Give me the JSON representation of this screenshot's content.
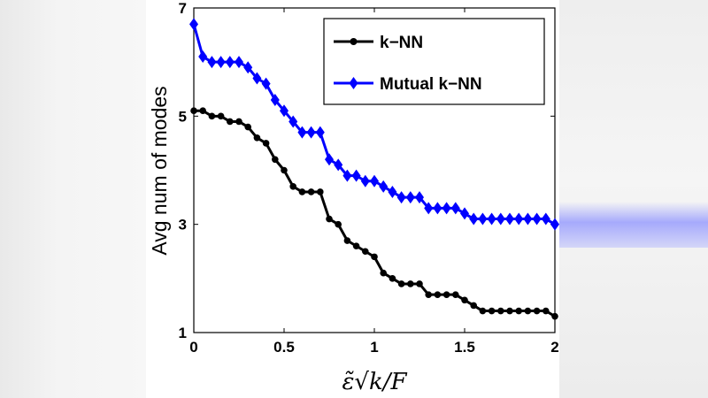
{
  "chart_data": {
    "type": "line",
    "xlabel": "ε̃√k/F",
    "ylabel": "Avg num of modes",
    "xlim": [
      0,
      2
    ],
    "ylim": [
      1,
      7
    ],
    "xticks": [
      0,
      0.5,
      1,
      1.5,
      2
    ],
    "xtick_labels": [
      "0",
      "0.5",
      "1",
      "1.5",
      "2"
    ],
    "yticks": [
      1,
      3,
      5,
      7
    ],
    "ytick_labels": [
      "1",
      "3",
      "5",
      "7"
    ],
    "grid": false,
    "legend_position": "top-right",
    "series": [
      {
        "name": "k−NN",
        "color": "#000000",
        "marker": "circle",
        "x": [
          0,
          0.05,
          0.1,
          0.15,
          0.2,
          0.25,
          0.3,
          0.35,
          0.4,
          0.45,
          0.5,
          0.55,
          0.6,
          0.65,
          0.7,
          0.75,
          0.8,
          0.85,
          0.9,
          0.95,
          1.0,
          1.05,
          1.1,
          1.15,
          1.2,
          1.25,
          1.3,
          1.35,
          1.4,
          1.45,
          1.5,
          1.55,
          1.6,
          1.65,
          1.7,
          1.75,
          1.8,
          1.85,
          1.9,
          1.95,
          2.0
        ],
        "y": [
          5.1,
          5.1,
          5.0,
          5.0,
          4.9,
          4.9,
          4.8,
          4.6,
          4.5,
          4.2,
          4.0,
          3.7,
          3.6,
          3.6,
          3.6,
          3.1,
          3.0,
          2.7,
          2.6,
          2.5,
          2.4,
          2.1,
          2.0,
          1.9,
          1.9,
          1.9,
          1.7,
          1.7,
          1.7,
          1.7,
          1.6,
          1.5,
          1.4,
          1.4,
          1.4,
          1.4,
          1.4,
          1.4,
          1.4,
          1.4,
          1.3
        ]
      },
      {
        "name": "Mutual k−NN",
        "color": "#0000ff",
        "marker": "diamond",
        "x": [
          0,
          0.05,
          0.1,
          0.15,
          0.2,
          0.25,
          0.3,
          0.35,
          0.4,
          0.45,
          0.5,
          0.55,
          0.6,
          0.65,
          0.7,
          0.75,
          0.8,
          0.85,
          0.9,
          0.95,
          1.0,
          1.05,
          1.1,
          1.15,
          1.2,
          1.25,
          1.3,
          1.35,
          1.4,
          1.45,
          1.5,
          1.55,
          1.6,
          1.65,
          1.7,
          1.75,
          1.8,
          1.85,
          1.9,
          1.95,
          2.0
        ],
        "y": [
          6.7,
          6.1,
          6.0,
          6.0,
          6.0,
          6.0,
          5.9,
          5.7,
          5.6,
          5.3,
          5.1,
          4.9,
          4.7,
          4.7,
          4.7,
          4.2,
          4.1,
          3.9,
          3.9,
          3.8,
          3.8,
          3.7,
          3.6,
          3.5,
          3.5,
          3.5,
          3.3,
          3.3,
          3.3,
          3.3,
          3.2,
          3.1,
          3.1,
          3.1,
          3.1,
          3.1,
          3.1,
          3.1,
          3.1,
          3.1,
          3.0
        ]
      }
    ]
  }
}
